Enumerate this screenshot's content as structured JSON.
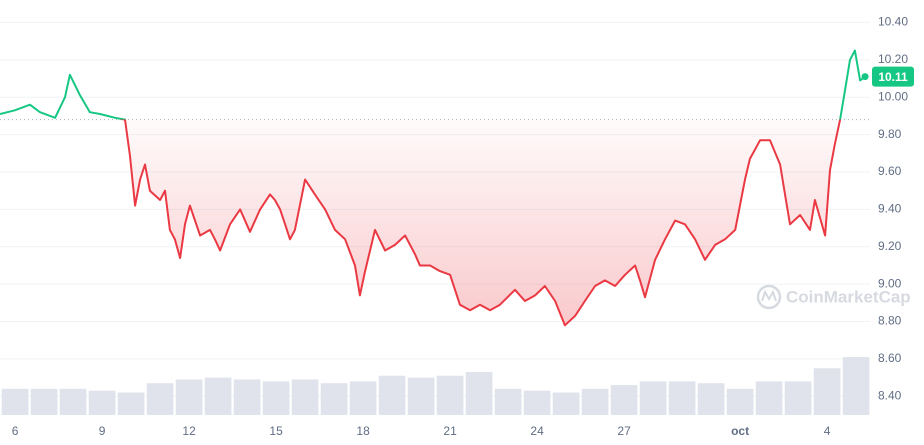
{
  "chart_data": {
    "type": "line",
    "x": [
      5.48,
      5.99,
      6.51,
      6.86,
      7.38,
      7.72,
      7.89,
      8.24,
      8.58,
      8.93,
      9.45,
      9.79,
      9.96,
      10.14,
      10.31,
      10.48,
      10.65,
      11.0,
      11.17,
      11.34,
      11.51,
      11.69,
      11.86,
      12.03,
      12.38,
      12.72,
      12.89,
      13.07,
      13.41,
      13.76,
      14.1,
      14.45,
      14.79,
      14.96,
      15.14,
      15.31,
      15.48,
      15.65,
      16.0,
      16.34,
      16.69,
      17.03,
      17.38,
      17.72,
      17.89,
      18.07,
      18.41,
      18.76,
      19.1,
      19.45,
      19.79,
      19.96,
      20.31,
      20.65,
      21.0,
      21.34,
      21.69,
      22.03,
      22.38,
      22.72,
      23.24,
      23.58,
      23.93,
      24.27,
      24.62,
      24.96,
      25.31,
      25.65,
      26.0,
      26.34,
      26.69,
      27.03,
      27.38,
      27.55,
      27.72,
      28.07,
      28.41,
      28.76,
      29.1,
      29.45,
      29.79,
      30.14,
      30.48,
      30.83,
      31.17,
      31.34,
      31.69,
      32.03,
      32.38,
      32.55,
      32.72,
      33.07,
      33.41,
      33.58,
      33.93,
      34.1,
      34.27,
      34.45,
      34.62,
      34.79,
      34.96,
      35.14,
      35.31
    ],
    "values": [
      9.91,
      9.93,
      9.96,
      9.92,
      9.89,
      10.0,
      10.12,
      10.01,
      9.92,
      9.91,
      9.89,
      9.88,
      9.69,
      9.42,
      9.56,
      9.64,
      9.5,
      9.45,
      9.5,
      9.29,
      9.24,
      9.14,
      9.32,
      9.42,
      9.26,
      9.29,
      9.24,
      9.18,
      9.32,
      9.4,
      9.28,
      9.4,
      9.48,
      9.45,
      9.4,
      9.32,
      9.24,
      9.29,
      9.56,
      9.48,
      9.4,
      9.29,
      9.24,
      9.1,
      8.94,
      9.07,
      9.29,
      9.18,
      9.21,
      9.26,
      9.16,
      9.1,
      9.1,
      9.07,
      9.05,
      8.89,
      8.86,
      8.89,
      8.86,
      8.89,
      8.97,
      8.91,
      8.94,
      8.99,
      8.91,
      8.78,
      8.83,
      8.91,
      8.99,
      9.02,
      8.99,
      9.05,
      9.1,
      9.02,
      8.93,
      9.13,
      9.24,
      9.34,
      9.32,
      9.24,
      9.13,
      9.21,
      9.24,
      9.29,
      9.56,
      9.67,
      9.77,
      9.77,
      9.64,
      9.48,
      9.32,
      9.37,
      9.29,
      9.45,
      9.26,
      9.61,
      9.75,
      9.88,
      10.04,
      10.2,
      10.25,
      10.09,
      10.11
    ],
    "baseline": 9.88,
    "last_value": 10.11,
    "up_color": "#16c784",
    "down_color": "#ea3943",
    "volume": {
      "color": "#e0e3eb",
      "x": [
        6,
        7,
        8,
        9,
        10,
        11,
        12,
        13,
        14,
        15,
        16,
        17,
        18,
        19,
        20,
        21,
        22,
        23,
        24,
        25,
        26,
        27,
        28,
        29,
        30,
        31,
        32,
        33,
        34,
        35
      ],
      "values": [
        8.44,
        8.44,
        8.44,
        8.43,
        8.42,
        8.47,
        8.49,
        8.5,
        8.49,
        8.48,
        8.49,
        8.47,
        8.48,
        8.51,
        8.5,
        8.51,
        8.53,
        8.44,
        8.43,
        8.42,
        8.44,
        8.46,
        8.48,
        8.48,
        8.47,
        8.44,
        8.48,
        8.48,
        8.55,
        8.61
      ]
    },
    "xlim": [
      5.48,
      35.48
    ],
    "xticks": [
      6,
      9,
      12,
      15,
      18,
      21,
      24,
      27,
      {
        "value": 31,
        "label": "oct"
      },
      {
        "value": 34,
        "label": "4"
      }
    ],
    "ylim": [
      8.3,
      10.52
    ],
    "yticks": [
      {
        "value": 8.4,
        "label": "8.40"
      },
      {
        "value": 8.6,
        "label": "8.60"
      },
      {
        "value": 8.8,
        "label": "8.80"
      },
      {
        "value": 9.0,
        "label": "9.00"
      },
      {
        "value": 9.2,
        "label": "9.20"
      },
      {
        "value": 9.4,
        "label": "9.40"
      },
      {
        "value": 9.6,
        "label": "9.60"
      },
      {
        "value": 9.8,
        "label": "9.80"
      },
      {
        "value": 10.0,
        "label": "10.00"
      },
      {
        "value": 10.2,
        "label": "10.20"
      },
      {
        "value": 10.4,
        "label": "10.40"
      }
    ],
    "grid": true,
    "watermark": "CoinMarketCap"
  }
}
